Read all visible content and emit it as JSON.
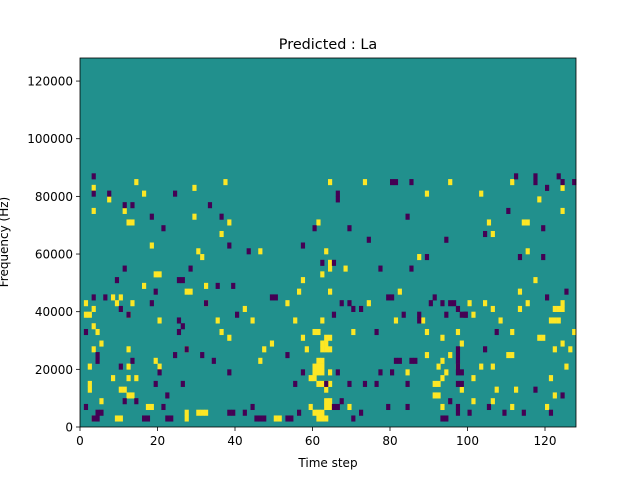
{
  "chart_data": {
    "type": "heatmap",
    "title": "Predicted : La",
    "xlabel": "Time step",
    "ylabel": "Frequency (Hz)",
    "xlim": [
      0,
      128
    ],
    "ylim": [
      0,
      128000
    ],
    "x_ticks": [
      0,
      20,
      40,
      60,
      80,
      100,
      120
    ],
    "y_ticks": [
      0,
      20000,
      40000,
      60000,
      80000,
      100000,
      120000
    ],
    "rows": 64,
    "cols": 128,
    "colors": {
      "background": "#21908d",
      "low": "#440154",
      "high": "#fde725"
    },
    "cells_note": "values: 1 = high (yellow), -1 = low (purple), otherwise background",
    "high": [
      [
        61,
        1
      ],
      [
        62,
        1
      ],
      [
        63,
        1
      ],
      [
        60,
        2
      ],
      [
        61,
        2
      ],
      [
        62,
        2
      ],
      [
        30,
        2
      ],
      [
        31,
        2
      ],
      [
        32,
        2
      ],
      [
        3,
        1
      ],
      [
        9,
        1
      ],
      [
        10,
        1
      ],
      [
        50,
        1
      ],
      [
        51,
        1
      ],
      [
        27,
        1
      ],
      [
        27,
        2
      ],
      [
        17,
        3
      ],
      [
        18,
        3
      ],
      [
        59,
        3
      ],
      [
        63,
        3
      ],
      [
        64,
        3
      ],
      [
        69,
        3
      ],
      [
        93,
        3
      ],
      [
        111,
        3
      ],
      [
        120,
        3
      ],
      [
        5,
        4
      ],
      [
        12,
        5
      ],
      [
        13,
        5
      ],
      [
        91,
        5
      ],
      [
        92,
        5
      ],
      [
        63,
        4
      ],
      [
        64,
        4
      ],
      [
        101,
        4
      ],
      [
        106,
        4
      ],
      [
        2,
        6
      ],
      [
        2,
        7
      ],
      [
        63,
        6
      ],
      [
        98,
        6
      ],
      [
        107,
        6
      ],
      [
        10,
        6
      ],
      [
        11,
        6
      ],
      [
        61,
        7
      ],
      [
        62,
        7
      ],
      [
        63,
        7
      ],
      [
        64,
        7
      ],
      [
        91,
        7
      ],
      [
        92,
        7
      ],
      [
        112,
        6
      ],
      [
        122,
        5
      ],
      [
        8,
        8
      ],
      [
        12,
        8
      ],
      [
        14,
        8
      ],
      [
        59,
        8
      ],
      [
        60,
        8
      ],
      [
        93,
        8
      ],
      [
        101,
        8
      ],
      [
        121,
        8
      ],
      [
        60,
        9
      ],
      [
        61,
        9
      ],
      [
        62,
        9
      ],
      [
        64,
        9
      ],
      [
        84,
        9
      ],
      [
        94,
        9
      ],
      [
        97,
        10
      ],
      [
        103,
        10
      ],
      [
        106,
        10
      ],
      [
        2,
        10
      ],
      [
        12,
        10
      ],
      [
        20,
        10
      ],
      [
        60,
        10
      ],
      [
        61,
        10
      ],
      [
        62,
        10
      ],
      [
        92,
        10
      ],
      [
        125,
        10
      ],
      [
        19,
        11
      ],
      [
        46,
        11
      ],
      [
        61,
        11
      ],
      [
        62,
        11
      ],
      [
        93,
        11
      ],
      [
        110,
        12
      ],
      [
        111,
        12
      ],
      [
        95,
        12
      ],
      [
        89,
        12
      ],
      [
        3,
        13
      ],
      [
        12,
        13
      ],
      [
        27,
        13
      ],
      [
        47,
        13
      ],
      [
        58,
        13
      ],
      [
        62,
        13
      ],
      [
        63,
        13
      ],
      [
        64,
        13
      ],
      [
        122,
        13
      ],
      [
        126,
        13
      ],
      [
        5,
        14
      ],
      [
        62,
        14
      ],
      [
        63,
        14
      ],
      [
        98,
        14
      ],
      [
        124,
        14
      ],
      [
        49,
        14
      ],
      [
        63,
        15
      ],
      [
        64,
        15
      ],
      [
        38,
        15
      ],
      [
        57,
        15
      ],
      [
        93,
        15
      ],
      [
        118,
        15
      ],
      [
        119,
        15
      ],
      [
        4,
        16
      ],
      [
        3,
        17
      ],
      [
        36,
        16
      ],
      [
        60,
        16
      ],
      [
        61,
        16
      ],
      [
        70,
        16
      ],
      [
        89,
        16
      ],
      [
        97,
        16
      ],
      [
        111,
        16
      ],
      [
        127,
        16
      ],
      [
        20,
        18
      ],
      [
        44,
        18
      ],
      [
        55,
        18
      ],
      [
        62,
        18
      ],
      [
        81,
        18
      ],
      [
        101,
        19
      ],
      [
        1,
        19
      ],
      [
        2,
        19
      ],
      [
        12,
        19
      ],
      [
        35,
        18
      ],
      [
        88,
        18
      ],
      [
        108,
        18
      ],
      [
        121,
        18
      ],
      [
        122,
        18
      ],
      [
        123,
        18
      ],
      [
        3,
        20
      ],
      [
        42,
        20
      ],
      [
        106,
        20
      ],
      [
        113,
        20
      ],
      [
        122,
        20
      ],
      [
        123,
        20
      ],
      [
        124,
        20
      ],
      [
        1,
        21
      ],
      [
        9,
        21
      ],
      [
        13,
        21
      ],
      [
        32,
        21
      ],
      [
        53,
        21
      ],
      [
        74,
        21
      ],
      [
        100,
        21
      ],
      [
        104,
        21
      ],
      [
        115,
        21
      ],
      [
        124,
        21
      ],
      [
        10,
        22
      ],
      [
        8,
        22
      ],
      [
        27,
        23
      ],
      [
        28,
        23
      ],
      [
        32,
        24
      ],
      [
        16,
        24
      ],
      [
        56,
        23
      ],
      [
        64,
        23
      ],
      [
        82,
        23
      ],
      [
        113,
        23
      ],
      [
        57,
        25
      ],
      [
        20,
        26
      ],
      [
        19,
        26
      ],
      [
        62,
        26
      ],
      [
        64,
        27
      ],
      [
        64,
        28
      ],
      [
        117,
        25
      ],
      [
        68,
        27
      ],
      [
        63,
        30
      ],
      [
        30,
        30
      ],
      [
        31,
        29
      ],
      [
        46,
        30
      ],
      [
        36,
        33
      ],
      [
        18,
        31
      ],
      [
        115,
        30
      ],
      [
        87,
        29
      ],
      [
        106,
        33
      ],
      [
        105,
        35
      ],
      [
        12,
        35
      ],
      [
        13,
        35
      ],
      [
        11,
        37
      ],
      [
        3,
        37
      ],
      [
        29,
        36
      ],
      [
        38,
        35
      ],
      [
        61,
        35
      ],
      [
        114,
        35
      ],
      [
        115,
        35
      ],
      [
        7,
        39
      ],
      [
        103,
        40
      ],
      [
        118,
        39
      ],
      [
        89,
        40
      ],
      [
        124,
        37
      ],
      [
        3,
        41
      ],
      [
        16,
        40
      ],
      [
        14,
        42
      ],
      [
        64,
        42
      ],
      [
        73,
        42
      ],
      [
        95,
        42
      ],
      [
        111,
        42
      ],
      [
        124,
        41
      ],
      [
        37,
        42
      ],
      [
        29,
        41
      ]
    ],
    "low": [
      [
        3,
        1
      ],
      [
        4,
        1
      ],
      [
        4,
        2
      ],
      [
        5,
        2
      ],
      [
        16,
        1
      ],
      [
        17,
        1
      ],
      [
        22,
        1
      ],
      [
        23,
        1
      ],
      [
        38,
        2
      ],
      [
        39,
        2
      ],
      [
        42,
        2
      ],
      [
        45,
        1
      ],
      [
        46,
        1
      ],
      [
        47,
        1
      ],
      [
        53,
        1
      ],
      [
        54,
        1
      ],
      [
        56,
        2
      ],
      [
        70,
        1
      ],
      [
        72,
        2
      ],
      [
        93,
        1
      ],
      [
        94,
        1
      ],
      [
        97,
        2
      ],
      [
        100,
        2
      ],
      [
        109,
        2
      ],
      [
        114,
        2
      ],
      [
        121,
        2
      ],
      [
        1,
        3
      ],
      [
        21,
        3
      ],
      [
        44,
        3
      ],
      [
        65,
        3
      ],
      [
        66,
        3
      ],
      [
        79,
        3
      ],
      [
        84,
        3
      ],
      [
        97,
        3
      ],
      [
        105,
        3
      ],
      [
        128,
        3
      ],
      [
        11,
        4
      ],
      [
        14,
        4
      ],
      [
        22,
        5
      ],
      [
        67,
        4
      ],
      [
        95,
        4
      ],
      [
        124,
        5
      ],
      [
        19,
        7
      ],
      [
        26,
        7
      ],
      [
        55,
        7
      ],
      [
        63,
        7
      ],
      [
        69,
        7
      ],
      [
        73,
        7
      ],
      [
        76,
        7
      ],
      [
        84,
        7
      ],
      [
        97,
        7
      ],
      [
        98,
        7
      ],
      [
        117,
        6
      ],
      [
        20,
        9
      ],
      [
        10,
        10
      ],
      [
        38,
        9
      ],
      [
        57,
        9
      ],
      [
        66,
        9
      ],
      [
        77,
        9
      ],
      [
        80,
        9
      ],
      [
        97,
        9
      ],
      [
        98,
        9
      ],
      [
        97,
        10
      ],
      [
        97,
        11
      ],
      [
        97,
        12
      ],
      [
        4,
        11
      ],
      [
        34,
        11
      ],
      [
        81,
        11
      ],
      [
        82,
        11
      ],
      [
        86,
        11
      ],
      [
        97,
        13
      ],
      [
        104,
        13
      ],
      [
        4,
        12
      ],
      [
        13,
        11
      ],
      [
        24,
        12
      ],
      [
        27,
        13
      ],
      [
        31,
        12
      ],
      [
        53,
        12
      ],
      [
        85,
        11
      ],
      [
        1,
        16
      ],
      [
        25,
        16
      ],
      [
        26,
        17
      ],
      [
        76,
        16
      ],
      [
        87,
        18
      ],
      [
        94,
        19
      ],
      [
        98,
        19
      ],
      [
        99,
        19
      ],
      [
        107,
        16
      ],
      [
        12,
        19
      ],
      [
        25,
        18
      ],
      [
        40,
        19
      ],
      [
        65,
        19
      ],
      [
        70,
        20
      ],
      [
        83,
        19
      ],
      [
        87,
        19
      ],
      [
        90,
        21
      ],
      [
        96,
        21
      ],
      [
        97,
        20
      ],
      [
        3,
        22
      ],
      [
        6,
        22
      ],
      [
        10,
        20
      ],
      [
        18,
        21
      ],
      [
        19,
        23
      ],
      [
        32,
        21
      ],
      [
        49,
        22
      ],
      [
        50,
        22
      ],
      [
        67,
        21
      ],
      [
        69,
        21
      ],
      [
        72,
        20
      ],
      [
        79,
        22
      ],
      [
        80,
        22
      ],
      [
        91,
        22
      ],
      [
        93,
        21
      ],
      [
        95,
        21
      ],
      [
        99,
        19
      ],
      [
        120,
        22
      ],
      [
        125,
        23
      ],
      [
        9,
        25
      ],
      [
        25,
        25
      ],
      [
        26,
        25
      ],
      [
        35,
        24
      ],
      [
        39,
        24
      ],
      [
        11,
        27
      ],
      [
        28,
        27
      ],
      [
        62,
        28
      ],
      [
        65,
        28
      ],
      [
        77,
        27
      ],
      [
        85,
        27
      ],
      [
        89,
        29
      ],
      [
        113,
        29
      ],
      [
        119,
        29
      ],
      [
        43,
        30
      ],
      [
        38,
        31
      ],
      [
        57,
        31
      ],
      [
        60,
        34
      ],
      [
        21,
        34
      ],
      [
        69,
        34
      ],
      [
        74,
        32
      ],
      [
        94,
        32
      ],
      [
        104,
        33
      ],
      [
        119,
        34
      ],
      [
        18,
        36
      ],
      [
        84,
        36
      ],
      [
        110,
        37
      ],
      [
        11,
        38
      ],
      [
        13,
        38
      ],
      [
        33,
        38
      ],
      [
        3,
        40
      ],
      [
        24,
        40
      ],
      [
        66,
        40
      ],
      [
        85,
        42
      ],
      [
        80,
        42
      ],
      [
        81,
        42
      ],
      [
        112,
        43
      ],
      [
        117,
        42
      ],
      [
        124,
        42
      ],
      [
        36,
        36
      ],
      [
        120,
        41
      ],
      [
        123,
        43
      ],
      [
        127,
        42
      ],
      [
        7,
        40
      ],
      [
        3,
        43
      ],
      [
        117,
        43
      ],
      [
        66,
        39
      ]
    ]
  }
}
